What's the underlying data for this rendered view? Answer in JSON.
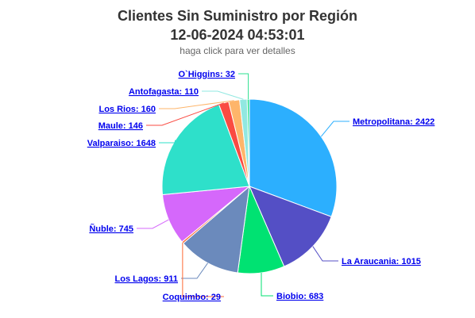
{
  "header": {
    "title_line1": "Clientes Sin Suministro por Región",
    "title_line2": "12-06-2024 04:53:01",
    "subtitle": "haga click para ver detalles"
  },
  "chart_data": {
    "type": "pie",
    "title": "Clientes Sin Suministro por Región 12-06-2024 04:53:01",
    "subtitle": "haga click para ver detalles",
    "slices": [
      {
        "name": "Metropolitana",
        "value": 2422,
        "color": "#2caffe"
      },
      {
        "name": "La Araucania",
        "value": 1015,
        "color": "#544fc5"
      },
      {
        "name": "Biobio",
        "value": 683,
        "color": "#00e272"
      },
      {
        "name": "Los Lagos",
        "value": 911,
        "color": "#6b8abc"
      },
      {
        "name": "Coquimbo",
        "value": 29,
        "color": "#fe6a35"
      },
      {
        "name": "Ñuble",
        "value": 745,
        "color": "#d568fb"
      },
      {
        "name": "Valparaiso",
        "value": 1648,
        "color": "#2ee0ca"
      },
      {
        "name": "Maule",
        "value": 146,
        "color": "#fa4b42"
      },
      {
        "name": "Los Rios",
        "value": 160,
        "color": "#feb56a"
      },
      {
        "name": "Antofagasta",
        "value": 110,
        "color": "#91e8e1"
      },
      {
        "name": "O`Higgins",
        "value": 32,
        "color": "#2ee090"
      }
    ]
  }
}
